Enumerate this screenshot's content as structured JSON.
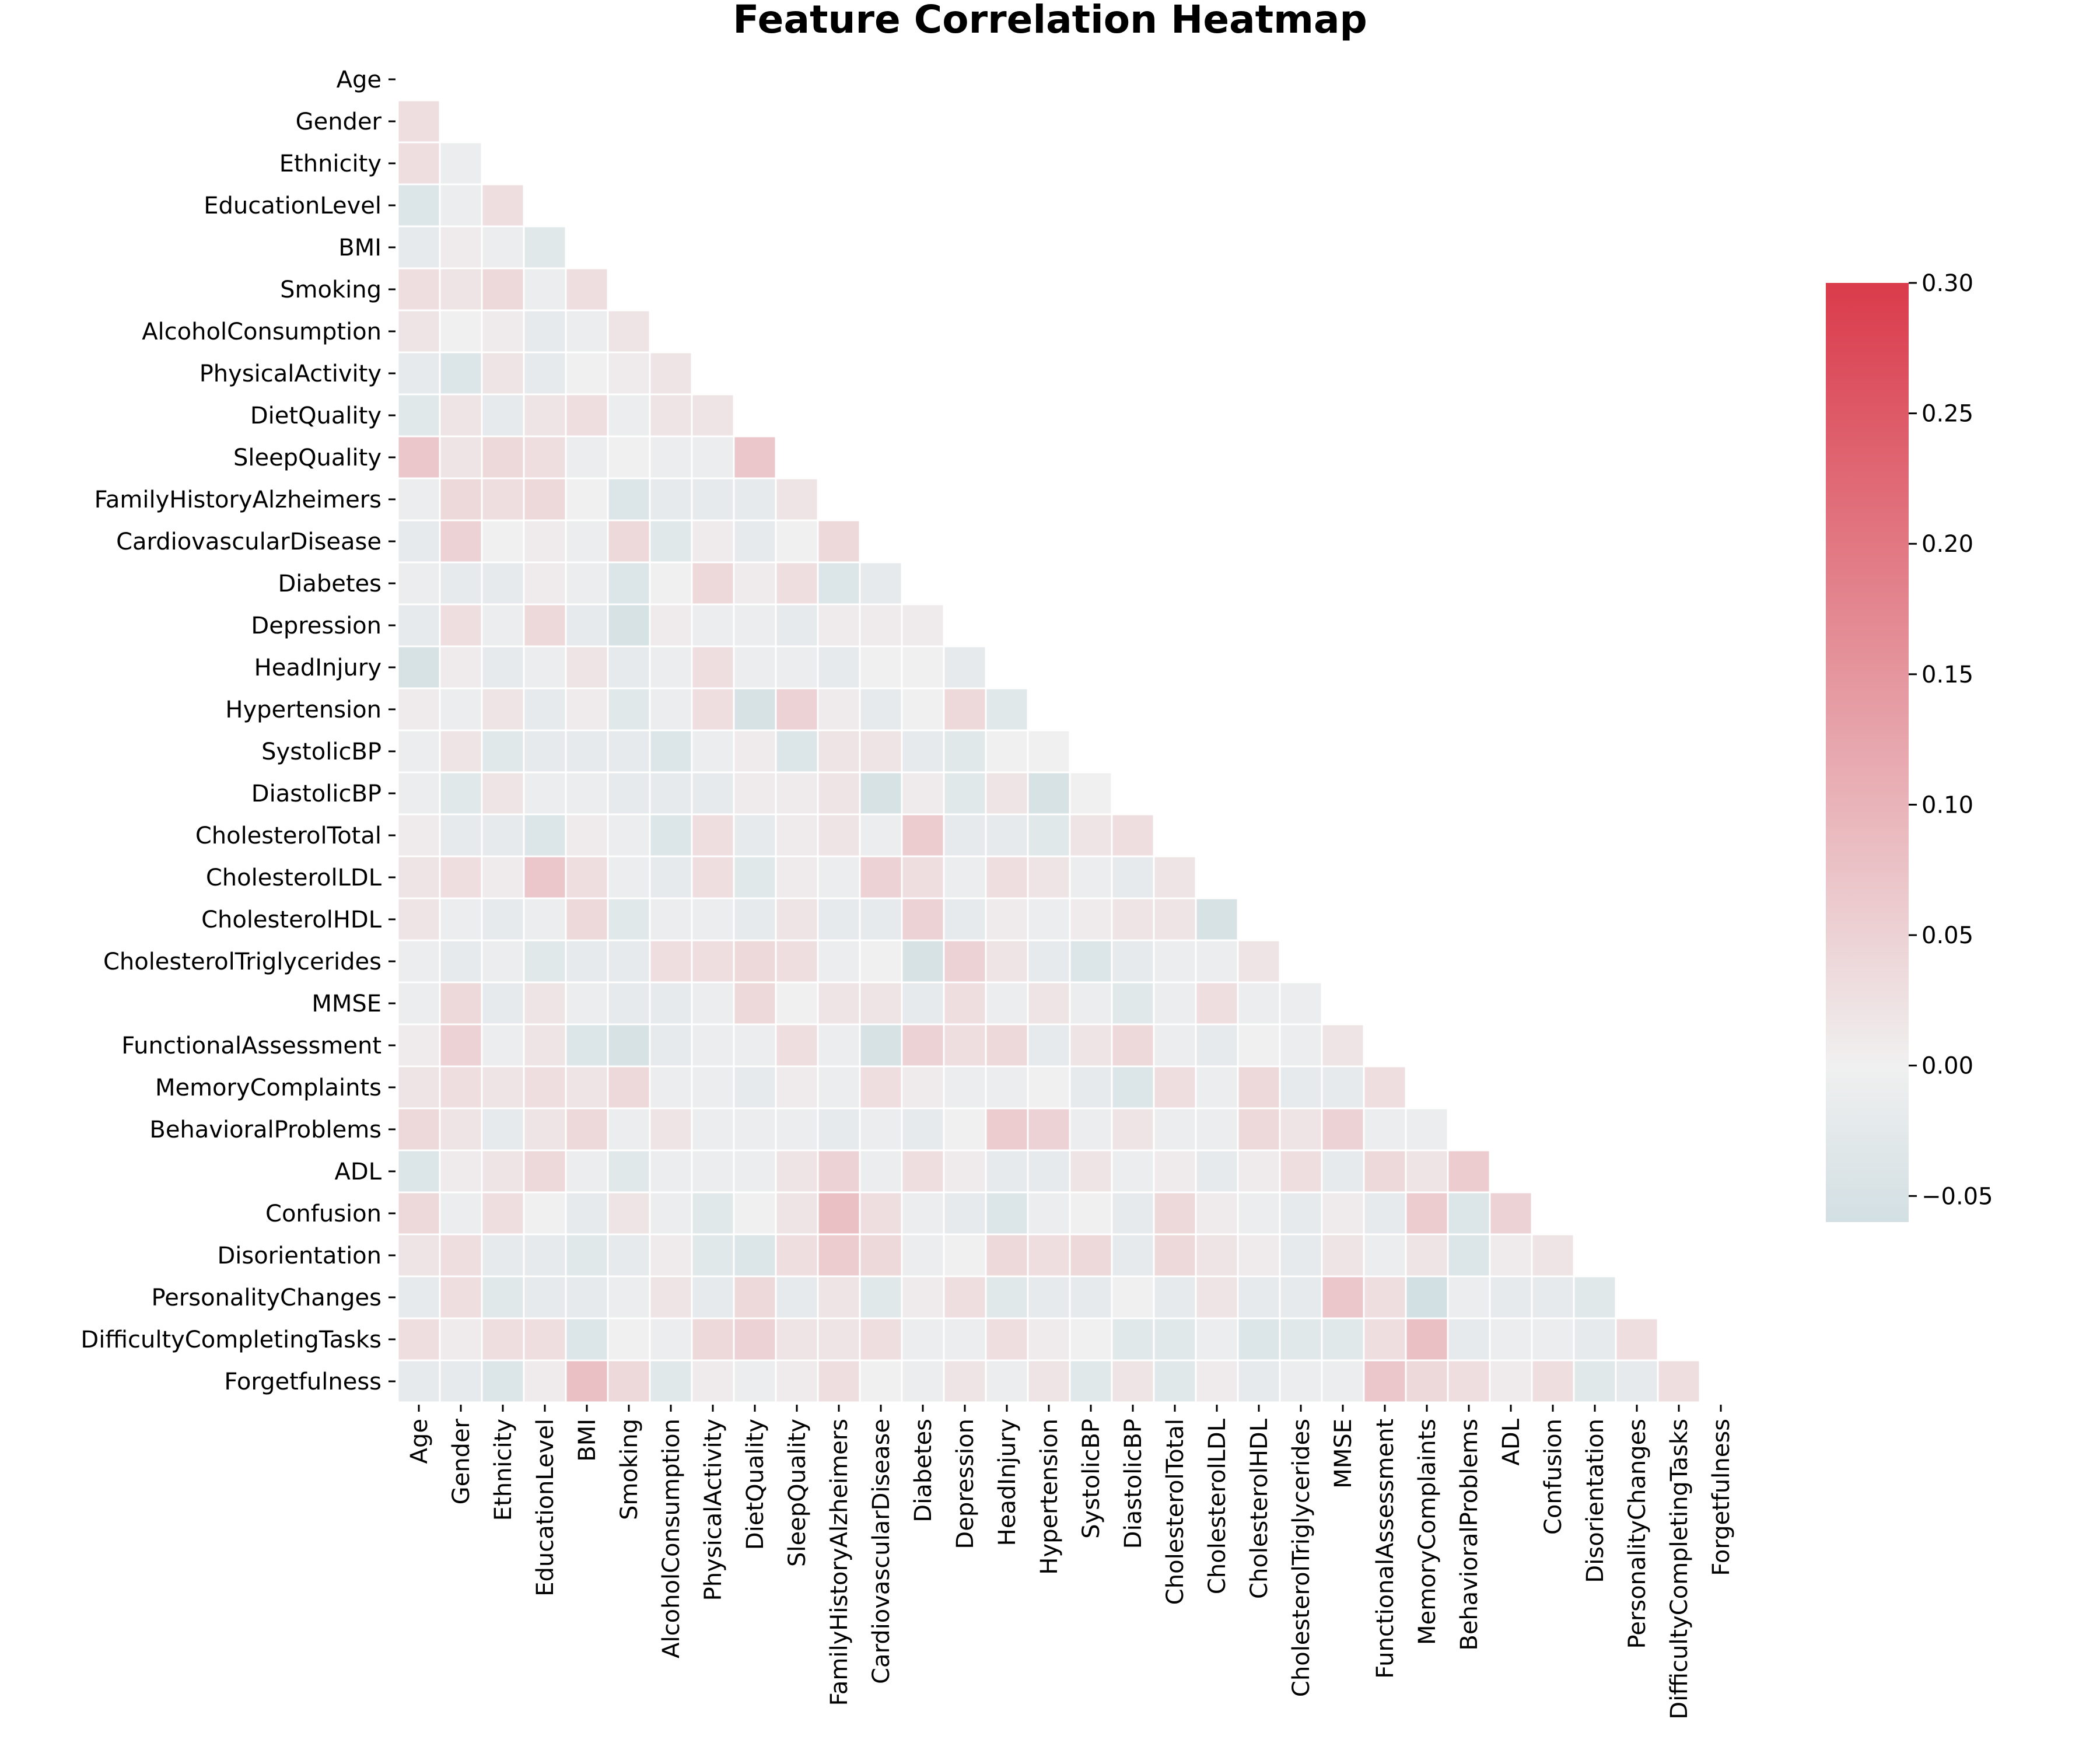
{
  "chart_data": {
    "type": "heatmap",
    "title": "Feature Correlation Heatmap",
    "mask": "upper-triangle-including-diagonal",
    "labels": [
      "Age",
      "Gender",
      "Ethnicity",
      "EducationLevel",
      "BMI",
      "Smoking",
      "AlcoholConsumption",
      "PhysicalActivity",
      "DietQuality",
      "SleepQuality",
      "FamilyHistoryAlzheimers",
      "CardiovascularDisease",
      "Diabetes",
      "Depression",
      "HeadInjury",
      "Hypertension",
      "SystolicBP",
      "DiastolicBP",
      "CholesterolTotal",
      "CholesterolLDL",
      "CholesterolHDL",
      "CholesterolTriglycerides",
      "MMSE",
      "FunctionalAssessment",
      "MemoryComplaints",
      "BehavioralProblems",
      "ADL",
      "Confusion",
      "Disorientation",
      "PersonalityChanges",
      "DifficultyCompletingTasks",
      "Forgetfulness"
    ],
    "lower_triangle_rows": [
      [],
      [
        0.03
      ],
      [
        0.03,
        -0.01
      ],
      [
        -0.04,
        -0.01,
        0.03
      ],
      [
        -0.02,
        0.01,
        -0.01,
        -0.03
      ],
      [
        0.03,
        0.02,
        0.04,
        -0.01,
        0.03
      ],
      [
        0.02,
        0.0,
        0.01,
        -0.02,
        -0.01,
        0.02
      ],
      [
        -0.02,
        -0.04,
        0.02,
        -0.02,
        0.0,
        0.01,
        0.02
      ],
      [
        -0.03,
        0.02,
        -0.02,
        0.02,
        0.03,
        -0.01,
        0.02,
        0.02
      ],
      [
        0.07,
        0.02,
        0.04,
        0.03,
        -0.01,
        0.0,
        -0.01,
        -0.01,
        0.07
      ],
      [
        -0.01,
        0.04,
        0.03,
        0.04,
        0.0,
        -0.04,
        -0.02,
        -0.02,
        -0.02,
        0.02
      ],
      [
        -0.02,
        0.05,
        0.0,
        0.01,
        -0.01,
        0.04,
        -0.03,
        0.01,
        -0.02,
        0.0,
        0.04
      ],
      [
        -0.01,
        -0.02,
        -0.02,
        0.01,
        -0.01,
        -0.04,
        0.0,
        0.04,
        0.01,
        0.03,
        -0.04,
        -0.02
      ],
      [
        -0.02,
        0.03,
        -0.01,
        0.04,
        -0.02,
        -0.05,
        0.01,
        -0.01,
        -0.01,
        -0.02,
        0.01,
        0.01,
        0.01
      ],
      [
        -0.05,
        0.01,
        -0.02,
        -0.01,
        0.02,
        -0.02,
        -0.01,
        0.03,
        -0.01,
        -0.01,
        -0.02,
        0.0,
        0.0,
        -0.02
      ],
      [
        0.01,
        -0.01,
        0.02,
        -0.02,
        0.01,
        -0.03,
        -0.01,
        0.03,
        -0.05,
        0.05,
        0.01,
        -0.02,
        0.0,
        0.04,
        -0.03
      ],
      [
        -0.01,
        0.02,
        -0.03,
        -0.02,
        -0.02,
        -0.02,
        -0.04,
        -0.01,
        0.01,
        -0.04,
        0.02,
        0.02,
        -0.02,
        -0.03,
        0.0,
        0.0
      ],
      [
        -0.01,
        -0.03,
        0.02,
        -0.01,
        -0.01,
        -0.02,
        -0.02,
        -0.02,
        0.01,
        0.01,
        0.02,
        -0.05,
        0.01,
        -0.03,
        0.02,
        -0.05,
        0.0
      ],
      [
        0.01,
        -0.02,
        -0.02,
        -0.04,
        0.01,
        -0.01,
        -0.04,
        0.03,
        -0.02,
        0.01,
        0.02,
        -0.01,
        0.06,
        -0.02,
        -0.02,
        -0.03,
        0.02,
        0.03
      ],
      [
        0.02,
        0.03,
        0.01,
        0.07,
        0.03,
        -0.01,
        -0.02,
        0.03,
        -0.03,
        0.01,
        -0.01,
        0.05,
        0.03,
        -0.01,
        0.03,
        0.02,
        -0.01,
        -0.02,
        0.02
      ],
      [
        0.02,
        -0.01,
        -0.02,
        -0.01,
        0.04,
        -0.03,
        -0.01,
        -0.01,
        -0.02,
        0.02,
        -0.02,
        -0.02,
        0.05,
        -0.02,
        0.01,
        -0.01,
        0.01,
        0.02,
        0.02,
        -0.05
      ],
      [
        -0.01,
        -0.02,
        -0.01,
        -0.03,
        -0.02,
        -0.02,
        0.03,
        0.03,
        0.04,
        0.03,
        -0.01,
        0.0,
        -0.05,
        0.05,
        0.02,
        -0.02,
        -0.04,
        -0.02,
        -0.01,
        -0.01,
        0.02
      ],
      [
        -0.01,
        0.04,
        -0.02,
        0.02,
        -0.01,
        -0.02,
        -0.02,
        -0.01,
        0.04,
        0.0,
        0.02,
        0.02,
        -0.02,
        0.03,
        -0.01,
        0.02,
        -0.01,
        -0.03,
        -0.01,
        0.03,
        -0.01,
        -0.01
      ],
      [
        0.01,
        0.05,
        -0.01,
        0.02,
        -0.04,
        -0.05,
        -0.02,
        -0.01,
        -0.01,
        0.03,
        -0.01,
        -0.05,
        0.05,
        0.03,
        0.04,
        -0.02,
        0.02,
        0.04,
        -0.01,
        -0.02,
        0.0,
        -0.01,
        0.02
      ],
      [
        0.02,
        0.03,
        0.02,
        0.03,
        0.02,
        0.04,
        -0.01,
        -0.01,
        -0.02,
        0.01,
        -0.01,
        0.03,
        0.01,
        -0.01,
        -0.01,
        0.0,
        -0.02,
        -0.04,
        0.03,
        -0.01,
        0.04,
        -0.02,
        -0.02,
        0.03
      ],
      [
        0.04,
        0.02,
        -0.02,
        0.02,
        0.04,
        -0.01,
        0.02,
        -0.01,
        -0.01,
        -0.01,
        -0.02,
        -0.01,
        -0.02,
        0.0,
        0.06,
        0.05,
        -0.01,
        0.02,
        -0.01,
        -0.01,
        0.04,
        0.02,
        0.05,
        -0.01,
        -0.01
      ],
      [
        -0.04,
        0.01,
        0.02,
        0.04,
        -0.01,
        -0.03,
        -0.01,
        -0.01,
        -0.01,
        0.02,
        0.05,
        -0.01,
        0.03,
        0.01,
        -0.02,
        -0.02,
        0.02,
        -0.01,
        0.01,
        -0.02,
        0.01,
        0.03,
        -0.02,
        0.04,
        0.02,
        0.06
      ],
      [
        0.04,
        -0.01,
        0.03,
        0.0,
        -0.02,
        0.02,
        -0.01,
        -0.03,
        0.0,
        0.02,
        0.08,
        0.03,
        -0.01,
        -0.02,
        -0.04,
        -0.01,
        0.0,
        -0.02,
        0.04,
        0.01,
        -0.01,
        -0.02,
        0.01,
        -0.02,
        0.06,
        -0.04,
        0.05
      ],
      [
        0.02,
        0.03,
        -0.02,
        -0.02,
        -0.03,
        -0.02,
        0.01,
        -0.03,
        -0.04,
        0.03,
        0.06,
        0.04,
        -0.01,
        0.0,
        0.04,
        0.03,
        0.04,
        -0.02,
        0.04,
        0.02,
        0.01,
        -0.02,
        0.02,
        -0.01,
        0.02,
        -0.04,
        0.01,
        0.02
      ],
      [
        -0.02,
        0.03,
        -0.03,
        -0.02,
        -0.02,
        -0.01,
        0.02,
        -0.02,
        0.04,
        -0.02,
        0.02,
        -0.03,
        0.01,
        0.03,
        -0.03,
        -0.02,
        -0.02,
        0.0,
        -0.02,
        0.02,
        -0.02,
        -0.02,
        0.07,
        0.03,
        -0.06,
        -0.01,
        -0.02,
        -0.02,
        -0.03
      ],
      [
        0.03,
        0.01,
        0.03,
        0.03,
        -0.04,
        0.0,
        -0.01,
        0.04,
        0.05,
        0.02,
        0.02,
        0.03,
        -0.01,
        -0.01,
        0.03,
        0.01,
        0.0,
        -0.03,
        -0.03,
        -0.01,
        -0.04,
        -0.03,
        -0.03,
        0.03,
        0.08,
        -0.02,
        -0.01,
        -0.01,
        -0.02,
        0.03
      ],
      [
        -0.02,
        -0.02,
        -0.04,
        0.01,
        0.08,
        0.04,
        -0.03,
        0.01,
        -0.01,
        0.01,
        0.03,
        0.0,
        -0.01,
        0.02,
        -0.01,
        0.02,
        -0.03,
        0.02,
        -0.03,
        0.01,
        -0.02,
        -0.01,
        -0.01,
        0.07,
        0.04,
        0.03,
        0.01,
        0.03,
        -0.03,
        -0.02,
        0.03
      ]
    ],
    "colorbar": {
      "min": -0.06,
      "max": 0.3,
      "ticks": [
        "−0.05",
        "0.00",
        "0.05",
        "0.10",
        "0.15",
        "0.20",
        "0.25",
        "0.30"
      ],
      "tick_values": [
        -0.05,
        0.0,
        0.05,
        0.1,
        0.15,
        0.2,
        0.25,
        0.3
      ],
      "colors": {
        "negative": "#d2dfe3",
        "center": "#f0f0f0",
        "positive": "#da3b4b"
      }
    }
  }
}
